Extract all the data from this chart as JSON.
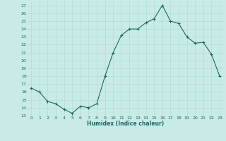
{
  "x": [
    0,
    1,
    2,
    3,
    4,
    5,
    6,
    7,
    8,
    9,
    10,
    11,
    12,
    13,
    14,
    15,
    16,
    17,
    18,
    19,
    20,
    21,
    22,
    23
  ],
  "y": [
    16.5,
    16.0,
    14.8,
    14.5,
    13.8,
    13.3,
    14.2,
    14.0,
    14.5,
    18.0,
    21.0,
    23.2,
    24.0,
    24.0,
    24.8,
    25.3,
    27.0,
    25.0,
    24.7,
    23.0,
    22.2,
    22.3,
    20.8,
    18.0
  ],
  "xlabel": "Humidex (Indice chaleur)",
  "ylim": [
    13,
    27.5
  ],
  "xlim": [
    -0.5,
    23.5
  ],
  "yticks": [
    13,
    14,
    15,
    16,
    17,
    18,
    19,
    20,
    21,
    22,
    23,
    24,
    25,
    26,
    27
  ],
  "xticks": [
    0,
    1,
    2,
    3,
    4,
    5,
    6,
    7,
    8,
    9,
    10,
    11,
    12,
    13,
    14,
    15,
    16,
    17,
    18,
    19,
    20,
    21,
    22,
    23
  ],
  "line_color": "#1a6b5e",
  "marker_color": "#1a6b5e",
  "bg_color": "#c8ebe8",
  "grid_color": "#b0d8d4",
  "xlabel_color": "#1a6b5e",
  "tick_color": "#1a6b5e",
  "fig_bg": "#c8ebe8"
}
